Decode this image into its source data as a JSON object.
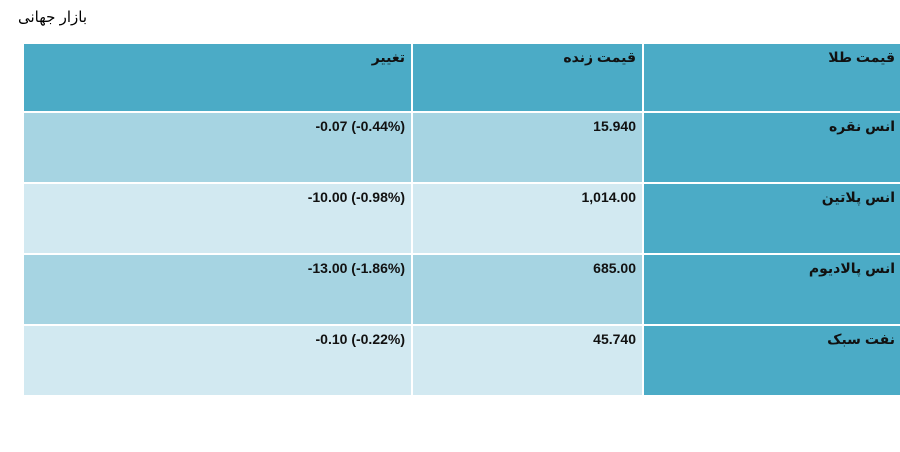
{
  "page": {
    "title": "بازار جهانی"
  },
  "table": {
    "headers": {
      "change": "تغییر",
      "live_price": "قیمت زنده",
      "gold_price": "قیمت طلا"
    },
    "rows": [
      {
        "name": "انس نقره",
        "price": "15.940",
        "change": "-0.07 (-0.44%)"
      },
      {
        "name": "انس پلاتین",
        "price": "1,014.00",
        "change": "-10.00 (-0.98%)"
      },
      {
        "name": "انس پالادیوم",
        "price": "685.00",
        "change": "-13.00 (-1.86%)"
      },
      {
        "name": "نفت سبک",
        "price": "45.740",
        "change": "-0.10 (-0.22%)"
      }
    ]
  },
  "colors": {
    "header_bg": "#4babc6",
    "row_dark_bg": "#a6d4e2",
    "row_light_bg": "#d2e9f1"
  }
}
